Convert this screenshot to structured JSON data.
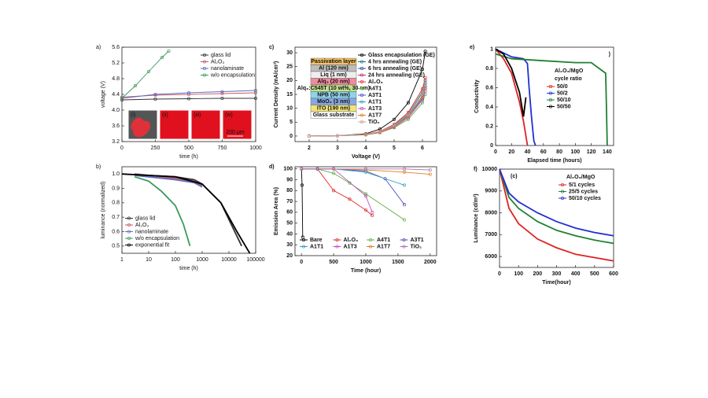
{
  "chart_data": [
    {
      "type": "line",
      "panel_label": "a)",
      "xlabel": "time (h)",
      "ylabel": "voltage (V)",
      "xlim": [
        0,
        1000
      ],
      "ylim": [
        3.2,
        5.6
      ],
      "xticks": [
        0,
        250,
        500,
        750,
        1000
      ],
      "yticks": [
        3.2,
        3.6,
        {
          "value": 4,
          "label": "4.0"
        },
        4.4,
        4.8,
        5.2,
        5.6
      ],
      "legend": "upper right",
      "markers": true,
      "series": [
        {
          "name": "glass lid",
          "color": "#333333",
          "x": [
            0,
            250,
            500,
            750,
            1000
          ],
          "values": [
            4.26,
            4.28,
            4.29,
            4.3,
            4.3
          ]
        },
        {
          "name": "Al₂O₃",
          "color": "#c85a6a",
          "x": [
            0,
            250,
            500,
            750,
            1000
          ],
          "values": [
            4.33,
            4.38,
            4.4,
            4.42,
            4.44
          ]
        },
        {
          "name": "nanolaminate",
          "color": "#5b6cc0",
          "x": [
            0,
            250,
            500,
            750,
            1000
          ],
          "values": [
            4.3,
            4.4,
            4.44,
            4.47,
            4.5
          ]
        },
        {
          "name": "w/o encapsulation",
          "color": "#3a9a5a",
          "x": [
            0,
            100,
            200,
            300,
            350
          ],
          "values": [
            4.3,
            4.62,
            4.98,
            5.34,
            5.5
          ]
        }
      ],
      "insets": [
        "(i)",
        "(ii)",
        "(iii)",
        "(iv)"
      ],
      "scale_bar": "200 μm"
    },
    {
      "type": "line",
      "panel_label": "b)",
      "xlabel": "time (h)",
      "ylabel": "luminance (normalized)",
      "xscale": "log",
      "xlim": [
        1,
        100000
      ],
      "ylim": [
        0.45,
        1.05
      ],
      "xticks": [
        1,
        10,
        100,
        1000,
        10000,
        100000
      ],
      "yticks": [
        0.5,
        0.6,
        0.7,
        0.8,
        0.9,
        {
          "value": 1,
          "label": "1.0"
        }
      ],
      "legend": "lower left",
      "series": [
        {
          "name": "glass lid",
          "color": "#333333",
          "x": [
            3,
            10,
            100,
            500,
            1000,
            5000,
            30000
          ],
          "values": [
            1.0,
            0.99,
            0.98,
            0.96,
            0.93,
            0.8,
            0.5
          ]
        },
        {
          "name": "Al₂O₃",
          "color": "#c85a6a",
          "x": [
            3,
            10,
            100,
            500,
            1000
          ],
          "values": [
            1.0,
            0.99,
            0.97,
            0.95,
            0.92
          ]
        },
        {
          "name": "nanolaminate",
          "color": "#5b6cc0",
          "x": [
            3,
            10,
            100,
            500,
            1000
          ],
          "values": [
            0.99,
            0.98,
            0.96,
            0.94,
            0.91
          ]
        },
        {
          "name": "w/o encapsulation",
          "color": "#3a9a5a",
          "x": [
            3,
            10,
            30,
            100,
            200,
            350
          ],
          "values": [
            0.98,
            0.95,
            0.88,
            0.78,
            0.65,
            0.5
          ]
        },
        {
          "name": "exponential fit",
          "color": "#000000",
          "x": [
            1,
            100,
            1000,
            5000,
            20000,
            60000
          ],
          "values": [
            1.0,
            0.98,
            0.93,
            0.8,
            0.6,
            0.45
          ]
        }
      ]
    },
    {
      "type": "line",
      "panel_label": "c)",
      "xlabel": "Voltage (V)",
      "ylabel": "Current Density (mA/cm²)",
      "xlim": [
        1.5,
        6.5
      ],
      "ylim": [
        -2,
        32
      ],
      "xticks": [
        2,
        3,
        4,
        5,
        6
      ],
      "yticks": [
        0,
        5,
        10,
        15,
        20,
        25,
        30
      ],
      "legend": "upper right",
      "markers": true,
      "device_stack": [
        {
          "label": "Passivation layer",
          "color": "#f5c26b"
        },
        {
          "label": "Al (120 nm)",
          "color": "#bdbdbd"
        },
        {
          "label": "Liq (1 nm)",
          "color": "#eeeeee"
        },
        {
          "label": "Alq₃ (20 nm)",
          "color": "#f08aa0"
        },
        {
          "label": "Alq₃:C545T (10 wt%, 30 nm)",
          "color": "#bfe38a"
        },
        {
          "label": "NPB (50 nm)",
          "color": "#8fd3ea"
        },
        {
          "label": "MoO₃ (3 nm)",
          "color": "#86a8e4"
        },
        {
          "label": "ITO (190 nm)",
          "color": "#f2e47a"
        },
        {
          "label": "Glass substrate",
          "color": "#ffffff"
        }
      ],
      "series": [
        {
          "name": "Glass encapsulation (GE)",
          "color": "#000000",
          "x": [
            2,
            3,
            4,
            4.5,
            5,
            5.5,
            6,
            6.1
          ],
          "values": [
            0,
            0.1,
            0.8,
            2.5,
            6,
            12,
            24,
            30.5
          ]
        },
        {
          "name": "4 hrs annealing (GE)",
          "color": "#1a7a7a",
          "x": [
            2,
            3,
            4,
            4.5,
            5,
            5.5,
            6,
            6.1
          ],
          "values": [
            0,
            0.1,
            0.6,
            1.6,
            4,
            8,
            16,
            20
          ]
        },
        {
          "name": "6 hrs annealing (GE)",
          "color": "#2f4fa0",
          "x": [
            2,
            3,
            4,
            4.5,
            5,
            5.5,
            6,
            6.1
          ],
          "values": [
            0,
            0.1,
            0.5,
            1.5,
            3.8,
            7.6,
            15.5,
            19
          ]
        },
        {
          "name": "24 hrs annealing (GE)",
          "color": "#c03060",
          "x": [
            2,
            3,
            4,
            4.5,
            5,
            5.5,
            6,
            6.1
          ],
          "values": [
            0,
            0.1,
            0.5,
            1.4,
            3.5,
            7,
            14.5,
            18
          ]
        },
        {
          "name": "Al₂O₃",
          "color": "#e03030",
          "x": [
            2,
            3,
            4,
            4.5,
            5,
            5.5,
            6,
            6.1
          ],
          "values": [
            0,
            0.1,
            0.6,
            1.7,
            4.2,
            8.5,
            17,
            21
          ]
        },
        {
          "name": "A4T1",
          "color": "#60b040",
          "x": [
            2,
            3,
            4,
            4.5,
            5,
            5.5,
            6,
            6.1
          ],
          "values": [
            0,
            0.1,
            0.4,
            1.2,
            3,
            6,
            12,
            15
          ]
        },
        {
          "name": "A3T1",
          "color": "#5050c0",
          "x": [
            2,
            3,
            4,
            4.5,
            5,
            5.5,
            6,
            6.1
          ],
          "values": [
            0,
            0.1,
            0.5,
            1.4,
            3.4,
            7,
            13.5,
            17
          ]
        },
        {
          "name": "A1T1",
          "color": "#30a0c0",
          "x": [
            2,
            3,
            4,
            4.5,
            5,
            5.5,
            6,
            6.1
          ],
          "values": [
            0,
            0.1,
            0.5,
            1.5,
            3.6,
            7.3,
            14.5,
            18
          ]
        },
        {
          "name": "A1T3",
          "color": "#c050c0",
          "x": [
            2,
            3,
            4,
            4.5,
            5,
            5.5,
            6,
            6.1
          ],
          "values": [
            0,
            0.1,
            0.5,
            1.3,
            3.2,
            6.6,
            13,
            16
          ]
        },
        {
          "name": "A1T7",
          "color": "#e08020",
          "x": [
            2,
            3,
            4,
            4.5,
            5,
            5.5,
            6,
            6.1
          ],
          "values": [
            0,
            0.1,
            0.5,
            1.4,
            3.4,
            7,
            14,
            17.5
          ]
        },
        {
          "name": "TiO₂",
          "color": "#c8a0a0",
          "x": [
            2,
            3,
            4,
            4.5,
            5,
            5.5,
            6,
            6.1
          ],
          "values": [
            0,
            0.1,
            0.6,
            1.6,
            3.9,
            7.8,
            15.5,
            19.5
          ]
        }
      ]
    },
    {
      "type": "line",
      "panel_label": "d)",
      "xlabel": "Time (hour)",
      "ylabel": "Emission Area (%)",
      "xlim": [
        -100,
        2100
      ],
      "ylim": [
        20,
        102
      ],
      "xticks": [
        0,
        500,
        1000,
        1500,
        2000
      ],
      "yticks": [
        20,
        30,
        40,
        50,
        60,
        70,
        80,
        90,
        100
      ],
      "legend": "lower center",
      "legend_columns": 4,
      "markers": true,
      "series": [
        {
          "name": "Bare",
          "color": "#000000",
          "x": [
            0,
            10,
            20
          ],
          "values": [
            100,
            85,
            37
          ]
        },
        {
          "name": "Al₂O₃",
          "color": "#e03030",
          "x": [
            0,
            250,
            500,
            750,
            1000,
            1100
          ],
          "values": [
            100,
            100,
            80,
            72,
            62,
            57
          ]
        },
        {
          "name": "A4T1",
          "color": "#60b040",
          "x": [
            0,
            250,
            500,
            750,
            1000,
            1600
          ],
          "values": [
            100,
            100,
            96,
            87,
            77,
            53
          ]
        },
        {
          "name": "A3T1",
          "color": "#5050c0",
          "x": [
            0,
            250,
            500,
            1000,
            1300,
            1600
          ],
          "values": [
            100,
            100,
            100,
            98,
            91,
            67
          ]
        },
        {
          "name": "A1T1",
          "color": "#30a0c0",
          "x": [
            0,
            500,
            1000,
            1600
          ],
          "values": [
            100,
            100,
            97,
            85
          ]
        },
        {
          "name": "A1T3",
          "color": "#c050c0",
          "x": [
            0,
            500,
            1000,
            1100
          ],
          "values": [
            100,
            100,
            75,
            60
          ]
        },
        {
          "name": "A1T7",
          "color": "#e08020",
          "x": [
            0,
            500,
            1000,
            1600,
            2000
          ],
          "values": [
            100,
            100,
            99,
            97,
            95
          ]
        },
        {
          "name": "TiO₂",
          "color": "#b070b0",
          "x": [
            0,
            500,
            1000,
            1600,
            2000
          ],
          "values": [
            100,
            100,
            100,
            100,
            99
          ]
        }
      ]
    },
    {
      "type": "line",
      "panel_label": "e)",
      "xlabel": "Elapsed time (hours)",
      "ylabel": "Conductivity",
      "xlim": [
        0,
        148
      ],
      "ylim": [
        0,
        1.02
      ],
      "xticks": [
        0,
        20,
        40,
        60,
        80,
        100,
        120,
        140
      ],
      "yticks": [
        0,
        0.2,
        0.4,
        0.6,
        0.8,
        1
      ],
      "legend": "center right",
      "legend_text_colored": true,
      "legend_title": [
        "Al₂O₃/MgO",
        "cycle ratio"
      ],
      "annotations": [
        ")"
      ],
      "series": [
        {
          "name": "50/0",
          "color": "#e02020",
          "x": [
            0,
            10,
            20,
            30,
            35,
            40
          ],
          "values": [
            1,
            0.9,
            0.75,
            0.45,
            0.25,
            0
          ]
        },
        {
          "name": "50/2",
          "color": "#2030d0",
          "x": [
            0,
            20,
            35,
            40,
            42,
            45,
            48,
            50
          ],
          "values": [
            1,
            0.92,
            0.9,
            0.85,
            0.6,
            0.3,
            0.05,
            0
          ]
        },
        {
          "name": "50/10",
          "color": "#208030",
          "x": [
            0,
            20,
            60,
            100,
            120,
            138,
            139,
            140
          ],
          "values": [
            0.95,
            0.9,
            0.88,
            0.86,
            0.86,
            0.75,
            0.4,
            0
          ]
        },
        {
          "name": "50/50",
          "color": "#000000",
          "x": [
            0,
            10,
            20,
            30,
            35,
            38
          ],
          "values": [
            1,
            0.95,
            0.8,
            0.55,
            0.3,
            0.5
          ]
        }
      ]
    },
    {
      "type": "line",
      "panel_label": "f)",
      "xlabel": "Time(hour)",
      "ylabel": "Luminance (cd/m²)",
      "xlim": [
        0,
        600
      ],
      "ylim": [
        5500,
        10000
      ],
      "xticks": [
        0,
        100,
        200,
        300,
        400,
        500,
        600
      ],
      "yticks": [
        6000,
        7000,
        8000,
        9000,
        10000
      ],
      "legend": "upper right",
      "legend_text_colored": true,
      "legend_title": [
        "Al₂O₃/MgO"
      ],
      "annotations": [
        "(c)"
      ],
      "series": [
        {
          "name": "5/1 cycles",
          "color": "#e02020",
          "x": [
            0,
            50,
            100,
            200,
            300,
            400,
            500,
            600
          ],
          "values": [
            10000,
            8200,
            7500,
            6800,
            6400,
            6100,
            5950,
            5800
          ]
        },
        {
          "name": "25/5 cycles",
          "color": "#208030",
          "x": [
            0,
            50,
            100,
            200,
            300,
            400,
            500,
            600
          ],
          "values": [
            10000,
            8700,
            8200,
            7600,
            7200,
            6950,
            6750,
            6600
          ]
        },
        {
          "name": "50/10 cycles",
          "color": "#2030d0",
          "x": [
            0,
            50,
            100,
            200,
            300,
            400,
            500,
            600
          ],
          "values": [
            10000,
            8900,
            8500,
            8000,
            7600,
            7300,
            7100,
            6950
          ]
        }
      ]
    }
  ]
}
